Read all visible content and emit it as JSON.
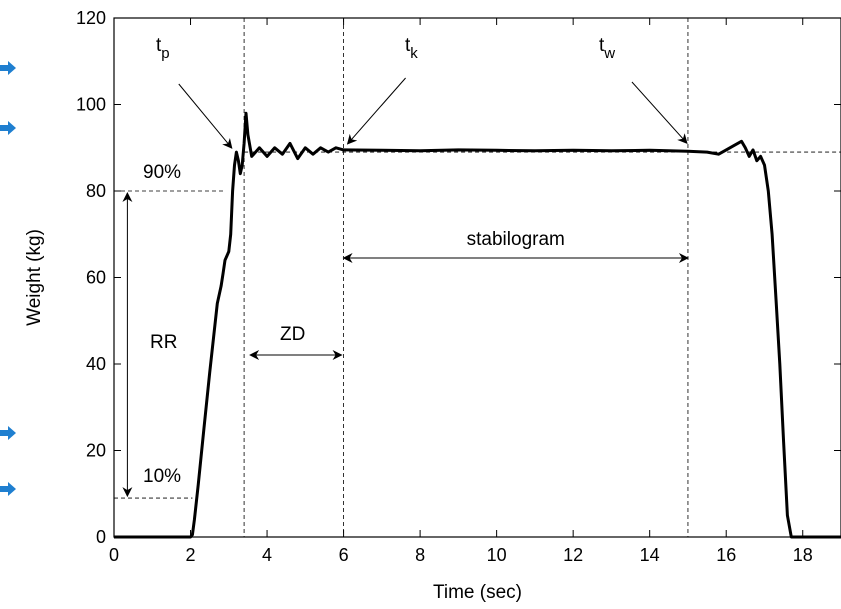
{
  "chart_data": {
    "type": "line",
    "title": "",
    "xlabel": "Time (sec)",
    "ylabel": "Weight (kg)",
    "xlim": [
      0,
      19
    ],
    "ylim": [
      0,
      120
    ],
    "xticks": [
      0,
      2,
      4,
      6,
      8,
      10,
      12,
      14,
      16,
      18
    ],
    "yticks": [
      0,
      20,
      40,
      60,
      80,
      100,
      120
    ],
    "grid": false,
    "series": [
      {
        "name": "",
        "color": "#000000",
        "points": [
          [
            0,
            0
          ],
          [
            2.0,
            0
          ],
          [
            2.05,
            0.5
          ],
          [
            2.1,
            4
          ],
          [
            2.2,
            12
          ],
          [
            2.35,
            25
          ],
          [
            2.5,
            38
          ],
          [
            2.6,
            46
          ],
          [
            2.7,
            54
          ],
          [
            2.8,
            58
          ],
          [
            2.85,
            61
          ],
          [
            2.9,
            64
          ],
          [
            2.95,
            65
          ],
          [
            3.0,
            66
          ],
          [
            3.05,
            70
          ],
          [
            3.1,
            80
          ],
          [
            3.15,
            86
          ],
          [
            3.2,
            89
          ],
          [
            3.25,
            87
          ],
          [
            3.3,
            84
          ],
          [
            3.35,
            86
          ],
          [
            3.4,
            91
          ],
          [
            3.45,
            98
          ],
          [
            3.5,
            93
          ],
          [
            3.6,
            88
          ],
          [
            3.8,
            90
          ],
          [
            4.0,
            88
          ],
          [
            4.2,
            90
          ],
          [
            4.4,
            88.5
          ],
          [
            4.6,
            91
          ],
          [
            4.8,
            87.5
          ],
          [
            5.0,
            90
          ],
          [
            5.2,
            88.5
          ],
          [
            5.4,
            90
          ],
          [
            5.6,
            89
          ],
          [
            5.8,
            90
          ],
          [
            6.0,
            89.5
          ],
          [
            7.0,
            89.4
          ],
          [
            8.0,
            89.3
          ],
          [
            9.0,
            89.5
          ],
          [
            10.0,
            89.4
          ],
          [
            11.0,
            89.3
          ],
          [
            12.0,
            89.4
          ],
          [
            13.0,
            89.3
          ],
          [
            14.0,
            89.4
          ],
          [
            15.0,
            89.2
          ],
          [
            15.5,
            89.0
          ],
          [
            15.8,
            88.5
          ],
          [
            16.0,
            89.5
          ],
          [
            16.2,
            90.5
          ],
          [
            16.4,
            91.5
          ],
          [
            16.5,
            90
          ],
          [
            16.6,
            88
          ],
          [
            16.7,
            89.5
          ],
          [
            16.8,
            87
          ],
          [
            16.9,
            88
          ],
          [
            17.0,
            86
          ],
          [
            17.1,
            80
          ],
          [
            17.2,
            70
          ],
          [
            17.3,
            55
          ],
          [
            17.4,
            40
          ],
          [
            17.5,
            22
          ],
          [
            17.6,
            5
          ],
          [
            17.7,
            0
          ],
          [
            19,
            0
          ]
        ]
      }
    ],
    "reference_lines": {
      "vertical": [
        3.4,
        6,
        15
      ],
      "horizontal": [
        {
          "y": 89,
          "x_from": 3.4,
          "x_to": 19
        },
        {
          "y": 80,
          "x_from": 0,
          "x_to": 2.9
        },
        {
          "y": 9,
          "x_from": 0,
          "x_to": 2.05
        }
      ]
    },
    "annotations": {
      "tp": {
        "main": "t",
        "sub": "p",
        "x": 3.0,
        "y": 89
      },
      "tk": {
        "main": "t",
        "sub": "k",
        "x": 6.0,
        "y": 89.5
      },
      "tw": {
        "main": "t",
        "sub": "w",
        "x": 15.0,
        "y": 89.2
      },
      "p90": {
        "text": "90%"
      },
      "p10": {
        "text": "10%"
      },
      "rr": {
        "text": "RR",
        "x": 0.35,
        "y_from": 80,
        "y_to": 9
      },
      "zd": {
        "text": "ZD",
        "x_from": 3.4,
        "x_to": 6
      },
      "stabilogram": {
        "text": "stabilogram",
        "x_from": 6,
        "x_to": 15
      }
    }
  },
  "side_markers": {
    "color": "#1f7fd0",
    "icon": "arrow-right-icon",
    "count": 4
  }
}
